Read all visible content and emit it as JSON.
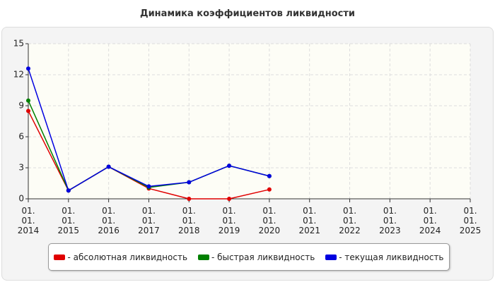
{
  "chart_data": {
    "type": "line",
    "title": "Динамика коэффициентов ликвидности",
    "categories": [
      "01.\n01.\n2014",
      "01.\n01.\n2015",
      "01.\n01.\n2016",
      "01.\n01.\n2017",
      "01.\n01.\n2018",
      "01.\n01.\n2019",
      "01.\n01.\n2020",
      "01.\n01.\n2021",
      "01.\n01.\n2022",
      "01.\n01.\n2023",
      "01.\n01.\n2024",
      "01.\n01.\n2025"
    ],
    "series": [
      {
        "name": "- абсолютная ликвидность",
        "color": "#e00000",
        "values": [
          8.5,
          0.8,
          3.1,
          1.0,
          0,
          0,
          0.9,
          null,
          null,
          null,
          null,
          null
        ]
      },
      {
        "name": "- быстрая ликвидность",
        "color": "#008000",
        "values": [
          9.5,
          0.8,
          3.1,
          1.1,
          1.6,
          3.2,
          2.2,
          null,
          null,
          null,
          null,
          null
        ]
      },
      {
        "name": "- текущая ликвидность",
        "color": "#0000e0",
        "values": [
          12.6,
          0.8,
          3.1,
          1.2,
          1.6,
          3.2,
          2.2,
          null,
          null,
          null,
          null,
          null
        ]
      }
    ],
    "ylim": [
      0,
      15
    ],
    "yticks": [
      0,
      3,
      6,
      9,
      12,
      15
    ],
    "grid": true
  }
}
